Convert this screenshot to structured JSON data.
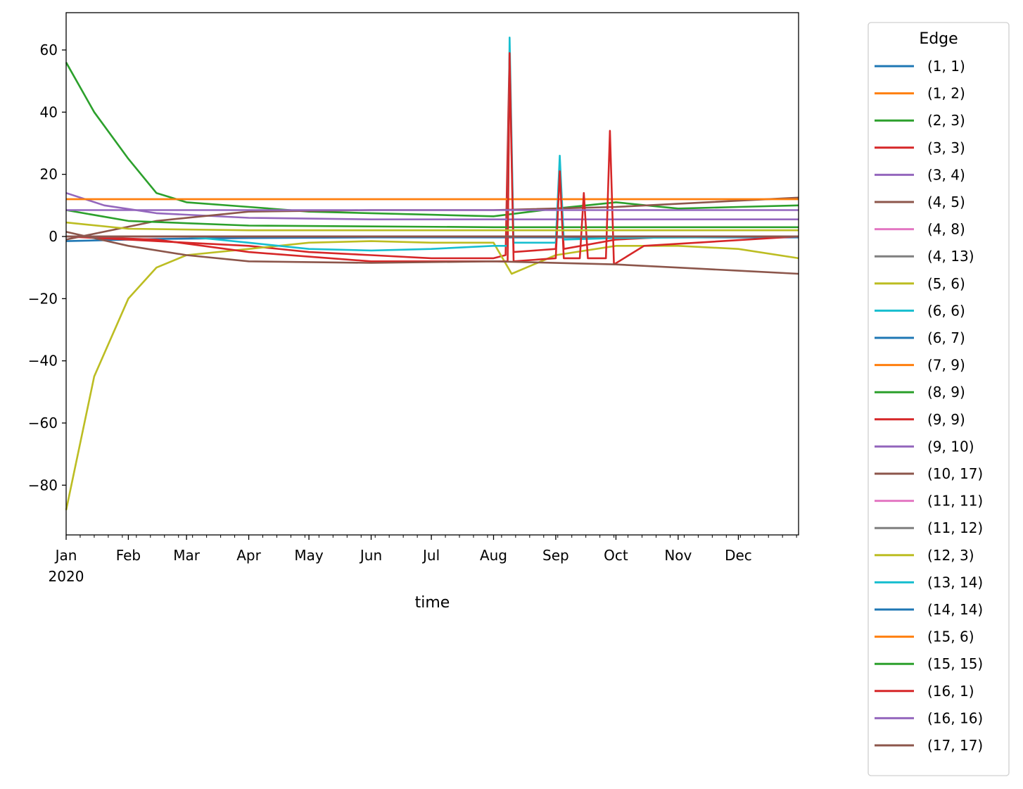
{
  "chart_data": {
    "type": "line",
    "title": "",
    "xlabel": "time",
    "ylabel": "",
    "x_range": [
      "2020-01-01",
      "2020-12-31"
    ],
    "ylim": [
      -96,
      72
    ],
    "y_ticks": [
      60,
      40,
      20,
      0,
      -20,
      -40,
      -60,
      -80
    ],
    "y_tick_labels": [
      "60",
      "40",
      "20",
      "0",
      "−20",
      "−40",
      "−60",
      "−80"
    ],
    "x_ticks": [
      {
        "date": "2020-01-01",
        "label": "Jan",
        "sublabel": "2020"
      },
      {
        "date": "2020-02-01",
        "label": "Feb"
      },
      {
        "date": "2020-03-01",
        "label": "Mar"
      },
      {
        "date": "2020-04-01",
        "label": "Apr"
      },
      {
        "date": "2020-05-01",
        "label": "May"
      },
      {
        "date": "2020-06-01",
        "label": "Jun"
      },
      {
        "date": "2020-07-01",
        "label": "Jul"
      },
      {
        "date": "2020-08-01",
        "label": "Aug"
      },
      {
        "date": "2020-09-01",
        "label": "Sep"
      },
      {
        "date": "2020-10-01",
        "label": "Oct"
      },
      {
        "date": "2020-11-01",
        "label": "Nov"
      },
      {
        "date": "2020-12-01",
        "label": "Dec"
      }
    ],
    "grid": false,
    "legend": {
      "title": "Edge",
      "position": "outside-right"
    },
    "series": [
      {
        "name": "(1, 1)",
        "color": "#1f77b4",
        "x": [
          "2020-01-01",
          "2020-02-15",
          "2020-04-01",
          "2020-06-01",
          "2020-08-01",
          "2020-10-01",
          "2020-12-31"
        ],
        "y": [
          -1.5,
          -0.8,
          -0.5,
          -0.3,
          -0.3,
          -0.3,
          -0.3
        ]
      },
      {
        "name": "(1, 2)",
        "color": "#ff7f0e",
        "x": [
          "2020-01-01",
          "2020-12-31"
        ],
        "y": [
          12,
          12
        ]
      },
      {
        "name": "(2, 3)",
        "color": "#2ca02c",
        "x": [
          "2020-01-01",
          "2020-01-15",
          "2020-02-01",
          "2020-02-15",
          "2020-03-01",
          "2020-04-01",
          "2020-05-01",
          "2020-06-01",
          "2020-07-01",
          "2020-08-01",
          "2020-09-01",
          "2020-10-01",
          "2020-11-01",
          "2020-12-01",
          "2020-12-31"
        ],
        "y": [
          56,
          40,
          25,
          14,
          11,
          9.5,
          8,
          7.5,
          7,
          6.5,
          9,
          11,
          9,
          9.5,
          10
        ]
      },
      {
        "name": "(3, 3)",
        "color": "#d62728",
        "x": [
          "2020-01-01",
          "2020-02-01",
          "2020-03-01",
          "2020-04-01",
          "2020-05-01",
          "2020-06-01",
          "2020-07-01",
          "2020-08-01",
          "2020-08-07",
          "2020-08-09",
          "2020-08-11",
          "2020-09-01",
          "2020-09-03",
          "2020-09-05",
          "2020-10-01",
          "2020-11-01",
          "2020-12-01",
          "2020-12-31"
        ],
        "y": [
          0,
          -1,
          -2,
          -3,
          -5,
          -6,
          -7,
          -7,
          -6,
          60,
          -5,
          -4,
          22,
          -4,
          -1,
          0,
          0,
          0
        ]
      },
      {
        "name": "(3, 4)",
        "color": "#9467bd",
        "x": [
          "2020-01-01",
          "2020-01-20",
          "2020-02-15",
          "2020-04-01",
          "2020-06-01",
          "2020-08-01",
          "2020-10-01",
          "2020-12-31"
        ],
        "y": [
          14,
          10,
          7.5,
          6,
          5.5,
          5.5,
          5.5,
          5.5
        ]
      },
      {
        "name": "(4, 5)",
        "color": "#8c564b",
        "x": [
          "2020-01-01",
          "2020-02-15",
          "2020-04-01",
          "2020-06-01",
          "2020-08-01",
          "2020-10-01",
          "2020-12-31"
        ],
        "y": [
          -1,
          5,
          8,
          8.5,
          8.5,
          9.5,
          12.5
        ]
      },
      {
        "name": "(4, 8)",
        "color": "#e377c2",
        "x": [
          "2020-01-01",
          "2020-12-31"
        ],
        "y": [
          0,
          0
        ]
      },
      {
        "name": "(4, 13)",
        "color": "#7f7f7f",
        "x": [
          "2020-01-01",
          "2020-12-31"
        ],
        "y": [
          0,
          0
        ]
      },
      {
        "name": "(5, 6)",
        "color": "#bcbd22",
        "x": [
          "2020-01-01",
          "2020-01-15",
          "2020-02-01",
          "2020-02-15",
          "2020-03-01",
          "2020-04-01",
          "2020-05-01",
          "2020-06-01",
          "2020-07-01",
          "2020-08-01",
          "2020-08-10",
          "2020-09-01",
          "2020-10-01",
          "2020-11-01",
          "2020-12-01",
          "2020-12-31"
        ],
        "y": [
          -88,
          -45,
          -20,
          -10,
          -6,
          -4,
          -2,
          -1.5,
          -2,
          -2,
          -12,
          -6,
          -3,
          -3,
          -4,
          -7
        ]
      },
      {
        "name": "(6, 6)",
        "color": "#17becf",
        "x": [
          "2020-01-01",
          "2020-03-01",
          "2020-04-01",
          "2020-05-01",
          "2020-06-01",
          "2020-07-01",
          "2020-08-01",
          "2020-08-08",
          "2020-08-09",
          "2020-08-11",
          "2020-09-01",
          "2020-09-03",
          "2020-09-05",
          "2020-10-01",
          "2020-12-31"
        ],
        "y": [
          0,
          0,
          -2,
          -4,
          -4.5,
          -4,
          -3,
          -3,
          64,
          -2,
          -2,
          26,
          -1,
          -0.5,
          0
        ]
      },
      {
        "name": "(6, 7)",
        "color": "#1f77b4",
        "x": [
          "2020-01-01",
          "2020-12-31"
        ],
        "y": [
          0,
          0
        ]
      },
      {
        "name": "(7, 9)",
        "color": "#ff7f0e",
        "x": [
          "2020-01-01",
          "2020-12-31"
        ],
        "y": [
          12,
          12
        ]
      },
      {
        "name": "(8, 9)",
        "color": "#2ca02c",
        "x": [
          "2020-01-01",
          "2020-02-01",
          "2020-04-01",
          "2020-08-01",
          "2020-12-31"
        ],
        "y": [
          8.5,
          5,
          3.5,
          3,
          3
        ]
      },
      {
        "name": "(9, 9)",
        "color": "#d62728",
        "x": [
          "2020-01-01",
          "2020-02-15",
          "2020-04-01",
          "2020-06-01",
          "2020-08-01",
          "2020-08-08",
          "2020-08-09",
          "2020-08-11",
          "2020-09-01",
          "2020-09-03",
          "2020-09-05",
          "2020-09-13",
          "2020-09-15",
          "2020-09-17",
          "2020-09-26",
          "2020-09-28",
          "2020-09-30",
          "2020-10-15",
          "2020-12-31"
        ],
        "y": [
          0,
          -1,
          -5,
          -8,
          -8,
          -8,
          59,
          -8,
          -7,
          21,
          -7,
          -7,
          14,
          -7,
          -7,
          34,
          -9,
          -3,
          0
        ]
      },
      {
        "name": "(9, 10)",
        "color": "#9467bd",
        "x": [
          "2020-01-01",
          "2020-12-31"
        ],
        "y": [
          8.5,
          8.5
        ]
      },
      {
        "name": "(10, 17)",
        "color": "#8c564b",
        "x": [
          "2020-01-01",
          "2020-02-01",
          "2020-03-01",
          "2020-04-01",
          "2020-06-01",
          "2020-08-01",
          "2020-10-01",
          "2020-11-01",
          "2020-12-01",
          "2020-12-31"
        ],
        "y": [
          1.5,
          -3,
          -6,
          -8,
          -8.5,
          -8,
          -9,
          -10,
          -11,
          -12
        ]
      },
      {
        "name": "(11, 11)",
        "color": "#e377c2",
        "x": [
          "2020-01-01",
          "2020-12-31"
        ],
        "y": [
          0,
          0
        ]
      },
      {
        "name": "(11, 12)",
        "color": "#7f7f7f",
        "x": [
          "2020-01-01",
          "2020-12-31"
        ],
        "y": [
          0,
          0
        ]
      },
      {
        "name": "(12, 3)",
        "color": "#bcbd22",
        "x": [
          "2020-01-01",
          "2020-02-01",
          "2020-04-01",
          "2020-08-01",
          "2020-12-31"
        ],
        "y": [
          4.5,
          2.5,
          2,
          2,
          2
        ]
      },
      {
        "name": "(13, 14)",
        "color": "#17becf",
        "x": [
          "2020-01-01",
          "2020-12-31"
        ],
        "y": [
          0,
          0
        ]
      },
      {
        "name": "(14, 14)",
        "color": "#1f77b4",
        "x": [
          "2020-01-01",
          "2020-12-31"
        ],
        "y": [
          0,
          0
        ]
      },
      {
        "name": "(15, 6)",
        "color": "#ff7f0e",
        "x": [
          "2020-01-01",
          "2020-12-31"
        ],
        "y": [
          0,
          0
        ]
      },
      {
        "name": "(15, 15)",
        "color": "#2ca02c",
        "x": [
          "2020-01-01",
          "2020-12-31"
        ],
        "y": [
          0,
          0
        ]
      },
      {
        "name": "(16, 1)",
        "color": "#d62728",
        "x": [
          "2020-01-01",
          "2020-12-31"
        ],
        "y": [
          0,
          0
        ]
      },
      {
        "name": "(16, 16)",
        "color": "#9467bd",
        "x": [
          "2020-01-01",
          "2020-12-31"
        ],
        "y": [
          0,
          0
        ]
      },
      {
        "name": "(17, 17)",
        "color": "#8c564b",
        "x": [
          "2020-01-01",
          "2020-12-31"
        ],
        "y": [
          0,
          0
        ]
      }
    ]
  }
}
